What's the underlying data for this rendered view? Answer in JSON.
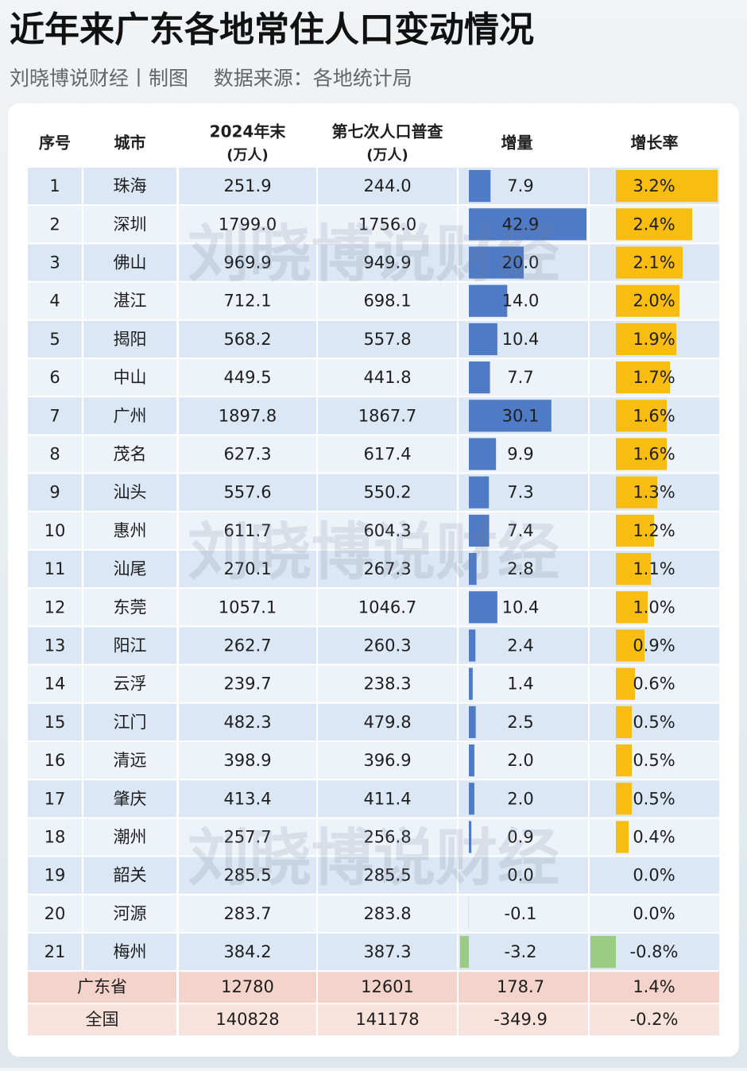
{
  "header": {
    "title": "近年来广东各地常住人口变动情况",
    "subtitle": "刘晓博说财经丨制图    数据来源：各地统计局"
  },
  "watermark": "刘晓博说财经",
  "table": {
    "columns": [
      {
        "label": "序号"
      },
      {
        "label": "城市"
      },
      {
        "label": "2024年末",
        "unit": "(万人)"
      },
      {
        "label": "第七次人口普查",
        "unit": "(万人)"
      },
      {
        "label": "增量"
      },
      {
        "label": "增长率"
      }
    ],
    "rows": [
      {
        "rank": 1,
        "city": "珠海",
        "pop_2024": "251.9",
        "census": "244.0",
        "increase": {
          "value": 7.9,
          "label": "7.9"
        },
        "growth": {
          "value": 3.2,
          "label": "3.2%"
        }
      },
      {
        "rank": 2,
        "city": "深圳",
        "pop_2024": "1799.0",
        "census": "1756.0",
        "increase": {
          "value": 42.9,
          "label": "42.9"
        },
        "growth": {
          "value": 2.4,
          "label": "2.4%"
        }
      },
      {
        "rank": 3,
        "city": "佛山",
        "pop_2024": "969.9",
        "census": "949.9",
        "increase": {
          "value": 20,
          "label": "20.0"
        },
        "growth": {
          "value": 2.1,
          "label": "2.1%"
        }
      },
      {
        "rank": 4,
        "city": "湛江",
        "pop_2024": "712.1",
        "census": "698.1",
        "increase": {
          "value": 14,
          "label": "14.0"
        },
        "growth": {
          "value": 2,
          "label": "2.0%"
        }
      },
      {
        "rank": 5,
        "city": "揭阳",
        "pop_2024": "568.2",
        "census": "557.8",
        "increase": {
          "value": 10.4,
          "label": "10.4"
        },
        "growth": {
          "value": 1.9,
          "label": "1.9%"
        }
      },
      {
        "rank": 6,
        "city": "中山",
        "pop_2024": "449.5",
        "census": "441.8",
        "increase": {
          "value": 7.7,
          "label": "7.7"
        },
        "growth": {
          "value": 1.7,
          "label": "1.7%"
        }
      },
      {
        "rank": 7,
        "city": "广州",
        "pop_2024": "1897.8",
        "census": "1867.7",
        "increase": {
          "value": 30.1,
          "label": "30.1"
        },
        "growth": {
          "value": 1.6,
          "label": "1.6%"
        }
      },
      {
        "rank": 8,
        "city": "茂名",
        "pop_2024": "627.3",
        "census": "617.4",
        "increase": {
          "value": 9.9,
          "label": "9.9"
        },
        "growth": {
          "value": 1.6,
          "label": "1.6%"
        }
      },
      {
        "rank": 9,
        "city": "汕头",
        "pop_2024": "557.6",
        "census": "550.2",
        "increase": {
          "value": 7.3,
          "label": "7.3"
        },
        "growth": {
          "value": 1.3,
          "label": "1.3%"
        }
      },
      {
        "rank": 10,
        "city": "惠州",
        "pop_2024": "611.7",
        "census": "604.3",
        "increase": {
          "value": 7.4,
          "label": "7.4"
        },
        "growth": {
          "value": 1.2,
          "label": "1.2%"
        }
      },
      {
        "rank": 11,
        "city": "汕尾",
        "pop_2024": "270.1",
        "census": "267.3",
        "increase": {
          "value": 2.8,
          "label": "2.8"
        },
        "growth": {
          "value": 1.1,
          "label": "1.1%"
        }
      },
      {
        "rank": 12,
        "city": "东莞",
        "pop_2024": "1057.1",
        "census": "1046.7",
        "increase": {
          "value": 10.4,
          "label": "10.4"
        },
        "growth": {
          "value": 1,
          "label": "1.0%"
        }
      },
      {
        "rank": 13,
        "city": "阳江",
        "pop_2024": "262.7",
        "census": "260.3",
        "increase": {
          "value": 2.4,
          "label": "2.4"
        },
        "growth": {
          "value": 0.9,
          "label": "0.9%"
        }
      },
      {
        "rank": 14,
        "city": "云浮",
        "pop_2024": "239.7",
        "census": "238.3",
        "increase": {
          "value": 1.4,
          "label": "1.4"
        },
        "growth": {
          "value": 0.6,
          "label": "0.6%"
        }
      },
      {
        "rank": 15,
        "city": "江门",
        "pop_2024": "482.3",
        "census": "479.8",
        "increase": {
          "value": 2.5,
          "label": "2.5"
        },
        "growth": {
          "value": 0.5,
          "label": "0.5%"
        }
      },
      {
        "rank": 16,
        "city": "清远",
        "pop_2024": "398.9",
        "census": "396.9",
        "increase": {
          "value": 2,
          "label": "2.0"
        },
        "growth": {
          "value": 0.5,
          "label": "0.5%"
        }
      },
      {
        "rank": 17,
        "city": "肇庆",
        "pop_2024": "413.4",
        "census": "411.4",
        "increase": {
          "value": 2,
          "label": "2.0"
        },
        "growth": {
          "value": 0.5,
          "label": "0.5%"
        }
      },
      {
        "rank": 18,
        "city": "潮州",
        "pop_2024": "257.7",
        "census": "256.8",
        "increase": {
          "value": 0.9,
          "label": "0.9"
        },
        "growth": {
          "value": 0.4,
          "label": "0.4%"
        }
      },
      {
        "rank": 19,
        "city": "韶关",
        "pop_2024": "285.5",
        "census": "285.5",
        "increase": {
          "value": 0,
          "label": "0.0"
        },
        "growth": {
          "value": 0,
          "label": "0.0%"
        }
      },
      {
        "rank": 20,
        "city": "河源",
        "pop_2024": "283.7",
        "census": "283.8",
        "increase": {
          "value": -0.1,
          "label": "-0.1"
        },
        "growth": {
          "value": 0,
          "label": "0.0%"
        }
      },
      {
        "rank": 21,
        "city": "梅州",
        "pop_2024": "384.2",
        "census": "387.3",
        "increase": {
          "value": -3.2,
          "label": "-3.2"
        },
        "growth": {
          "value": -0.8,
          "label": "-0.8%"
        }
      }
    ],
    "totals": [
      {
        "name": "广东省",
        "pop_2024": "12780",
        "census": "12601",
        "increase": "178.7",
        "growth": "1.4%"
      },
      {
        "name": "全国",
        "pop_2024": "140828",
        "census": "141178",
        "increase": "-349.9",
        "growth": "-0.2%"
      }
    ]
  }
}
